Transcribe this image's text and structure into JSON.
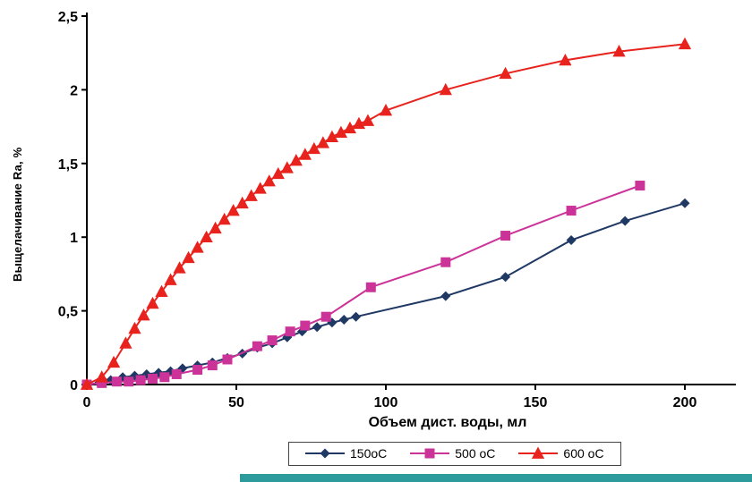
{
  "page": {
    "background": "#ffffff",
    "bottom_strip_color": "#2D9B9B"
  },
  "chart_data": {
    "type": "line",
    "title": "",
    "xlabel": "Объем дист. воды, мл",
    "ylabel": "Выщелачивание Ra, %",
    "xlim": [
      0,
      200
    ],
    "ylim": [
      0,
      2.5
    ],
    "grid": false,
    "legend_position": "bottom",
    "xticks": [
      {
        "value": 0,
        "label": "0"
      },
      {
        "value": 50,
        "label": "50"
      },
      {
        "value": 100,
        "label": "100"
      },
      {
        "value": 150,
        "label": "150"
      },
      {
        "value": 200,
        "label": "200"
      }
    ],
    "yticks": [
      {
        "value": 0,
        "label": "0"
      },
      {
        "value": 0.5,
        "label": "0,5"
      },
      {
        "value": 1,
        "label": "1"
      },
      {
        "value": 1.5,
        "label": "1,5"
      },
      {
        "value": 2,
        "label": "2"
      },
      {
        "value": 2.5,
        "label": "2,5"
      }
    ],
    "series": [
      {
        "name": "150оС",
        "color": "#1F3864",
        "marker": "diamond",
        "points": [
          [
            0,
            0
          ],
          [
            4,
            0.01
          ],
          [
            8,
            0.03
          ],
          [
            12,
            0.05
          ],
          [
            16,
            0.06
          ],
          [
            20,
            0.07
          ],
          [
            24,
            0.08
          ],
          [
            28,
            0.09
          ],
          [
            32,
            0.11
          ],
          [
            37,
            0.13
          ],
          [
            42,
            0.15
          ],
          [
            47,
            0.18
          ],
          [
            52,
            0.21
          ],
          [
            57,
            0.25
          ],
          [
            62,
            0.28
          ],
          [
            67,
            0.32
          ],
          [
            72,
            0.36
          ],
          [
            77,
            0.39
          ],
          [
            82,
            0.42
          ],
          [
            86,
            0.44
          ],
          [
            90,
            0.46
          ],
          [
            120,
            0.6
          ],
          [
            140,
            0.73
          ],
          [
            162,
            0.98
          ],
          [
            180,
            1.11
          ],
          [
            200,
            1.23
          ]
        ]
      },
      {
        "name": "500 оС",
        "color": "#CC3399",
        "marker": "square",
        "points": [
          [
            0,
            0
          ],
          [
            5,
            0.01
          ],
          [
            10,
            0.02
          ],
          [
            14,
            0.02
          ],
          [
            18,
            0.03
          ],
          [
            22,
            0.04
          ],
          [
            26,
            0.05
          ],
          [
            30,
            0.07
          ],
          [
            37,
            0.1
          ],
          [
            42,
            0.13
          ],
          [
            47,
            0.17
          ],
          [
            57,
            0.26
          ],
          [
            62,
            0.3
          ],
          [
            68,
            0.36
          ],
          [
            73,
            0.4
          ],
          [
            80,
            0.46
          ],
          [
            95,
            0.66
          ],
          [
            120,
            0.83
          ],
          [
            140,
            1.01
          ],
          [
            162,
            1.18
          ],
          [
            185,
            1.35
          ]
        ]
      },
      {
        "name": "600 оС",
        "color": "#E8231D",
        "marker": "triangle",
        "points": [
          [
            0,
            0
          ],
          [
            5,
            0.05
          ],
          [
            9,
            0.15
          ],
          [
            13,
            0.28
          ],
          [
            16,
            0.38
          ],
          [
            19,
            0.47
          ],
          [
            22,
            0.55
          ],
          [
            25,
            0.63
          ],
          [
            28,
            0.71
          ],
          [
            31,
            0.79
          ],
          [
            34,
            0.86
          ],
          [
            37,
            0.93
          ],
          [
            40,
            1.0
          ],
          [
            43,
            1.06
          ],
          [
            46,
            1.12
          ],
          [
            49,
            1.18
          ],
          [
            52,
            1.23
          ],
          [
            55,
            1.28
          ],
          [
            58,
            1.33
          ],
          [
            61,
            1.38
          ],
          [
            64,
            1.43
          ],
          [
            67,
            1.47
          ],
          [
            70,
            1.52
          ],
          [
            73,
            1.56
          ],
          [
            76,
            1.6
          ],
          [
            79,
            1.64
          ],
          [
            82,
            1.68
          ],
          [
            85,
            1.71
          ],
          [
            88,
            1.74
          ],
          [
            91,
            1.77
          ],
          [
            94,
            1.79
          ],
          [
            100,
            1.86
          ],
          [
            120,
            2.0
          ],
          [
            140,
            2.11
          ],
          [
            160,
            2.2
          ],
          [
            178,
            2.26
          ],
          [
            200,
            2.31
          ]
        ]
      }
    ]
  }
}
